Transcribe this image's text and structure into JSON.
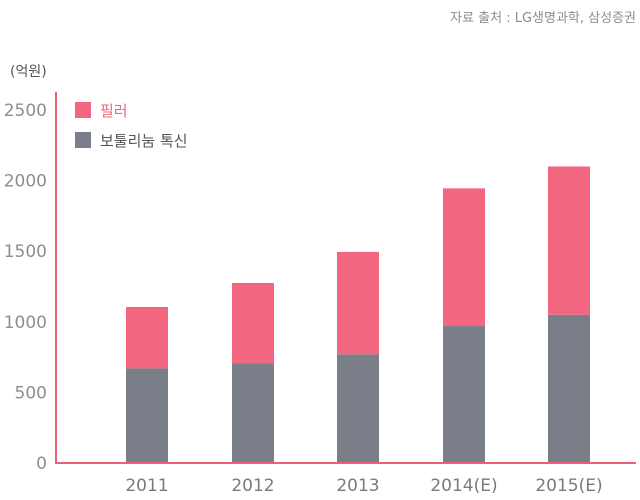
{
  "chart_data": {
    "type": "bar",
    "stacked": true,
    "source": "자료 출처 : LG생명과학, 삼성증권",
    "ylabel": "(억원)",
    "ylim": [
      0,
      2500
    ],
    "yticks": [
      "0",
      "500",
      "1000",
      "1500",
      "2000",
      "2500"
    ],
    "categories": [
      "2011",
      "2012",
      "2013",
      "2014(E)",
      "2015(E)"
    ],
    "series": [
      {
        "name": "보툴리눔 톡신",
        "color": "#7a7e88",
        "values": [
          670,
          705,
          770,
          970,
          1050
        ]
      },
      {
        "name": "필러",
        "color": "#f2667f",
        "values": [
          435,
          570,
          725,
          975,
          1050
        ]
      }
    ],
    "legend": {
      "position": "top-left",
      "items": [
        {
          "label": "필러",
          "color": "#f2667f",
          "text_color": "#f2667f"
        },
        {
          "label": "보툴리눔 톡신",
          "color": "#7a7e88",
          "text_color": "#555559"
        }
      ]
    },
    "axis_color": "#e8607a",
    "grid": false
  }
}
